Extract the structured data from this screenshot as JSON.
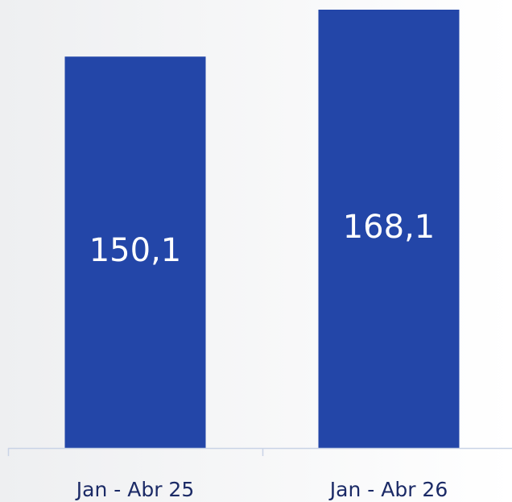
{
  "chart_data": {
    "type": "bar",
    "categories": [
      "Jan - Abr 25",
      "Jan - Abr 26"
    ],
    "values": [
      150.1,
      168.1
    ],
    "value_labels": [
      "150,1",
      "168,1"
    ],
    "color": "#2346a8"
  }
}
